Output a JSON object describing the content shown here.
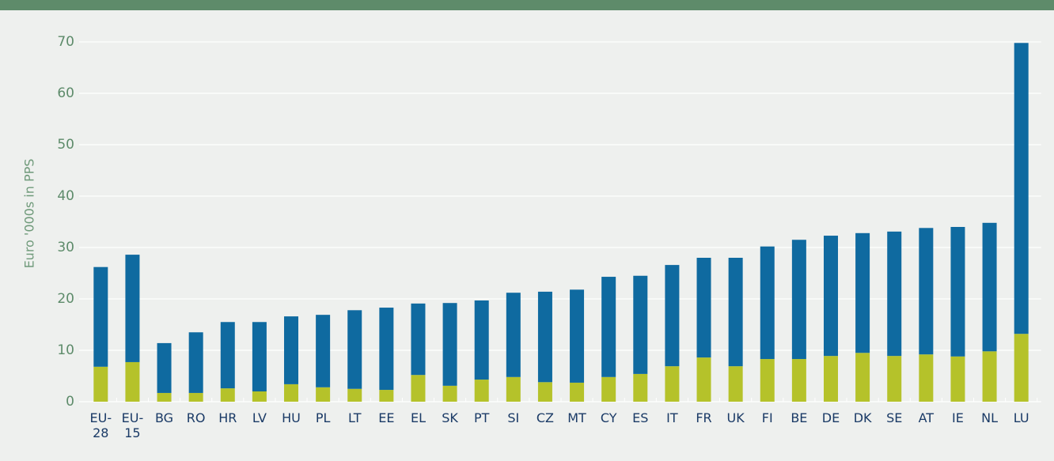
{
  "chart_data": {
    "type": "stacked_bar",
    "y_label": "Euro '000s in PPS",
    "categories": [
      "EU-28",
      "EU-15",
      "BG",
      "RO",
      "HR",
      "LV",
      "HU",
      "PL",
      "LT",
      "EE",
      "EL",
      "SK",
      "PT",
      "SI",
      "CZ",
      "MT",
      "CY",
      "ES",
      "IT",
      "FR",
      "UK",
      "FI",
      "BE",
      "DE",
      "DK",
      "SE",
      "AT",
      "IE",
      "NL",
      "LU"
    ],
    "series": [
      {
        "color": "#b5c22a",
        "values": [
          6.8,
          7.7,
          1.7,
          1.7,
          2.6,
          2.0,
          3.4,
          2.8,
          2.5,
          2.3,
          5.2,
          3.1,
          4.3,
          4.8,
          3.8,
          3.7,
          4.8,
          5.4,
          6.9,
          8.6,
          6.9,
          8.3,
          8.3,
          8.9,
          9.5,
          8.9,
          9.2,
          8.8,
          9.8,
          13.2
        ]
      },
      {
        "color": "#0f6aa0",
        "values": [
          19.4,
          20.9,
          9.7,
          11.8,
          12.9,
          13.5,
          13.2,
          14.1,
          15.3,
          16.0,
          13.9,
          16.1,
          15.4,
          16.4,
          17.6,
          18.1,
          19.5,
          19.1,
          19.7,
          19.4,
          21.1,
          21.9,
          23.2,
          23.4,
          23.3,
          24.2,
          24.6,
          25.2,
          25.0,
          56.6
        ]
      }
    ],
    "ylim": [
      0,
      70
    ],
    "yticks": [
      0,
      10,
      20,
      30,
      40,
      50,
      60,
      70
    ],
    "grid": true
  }
}
